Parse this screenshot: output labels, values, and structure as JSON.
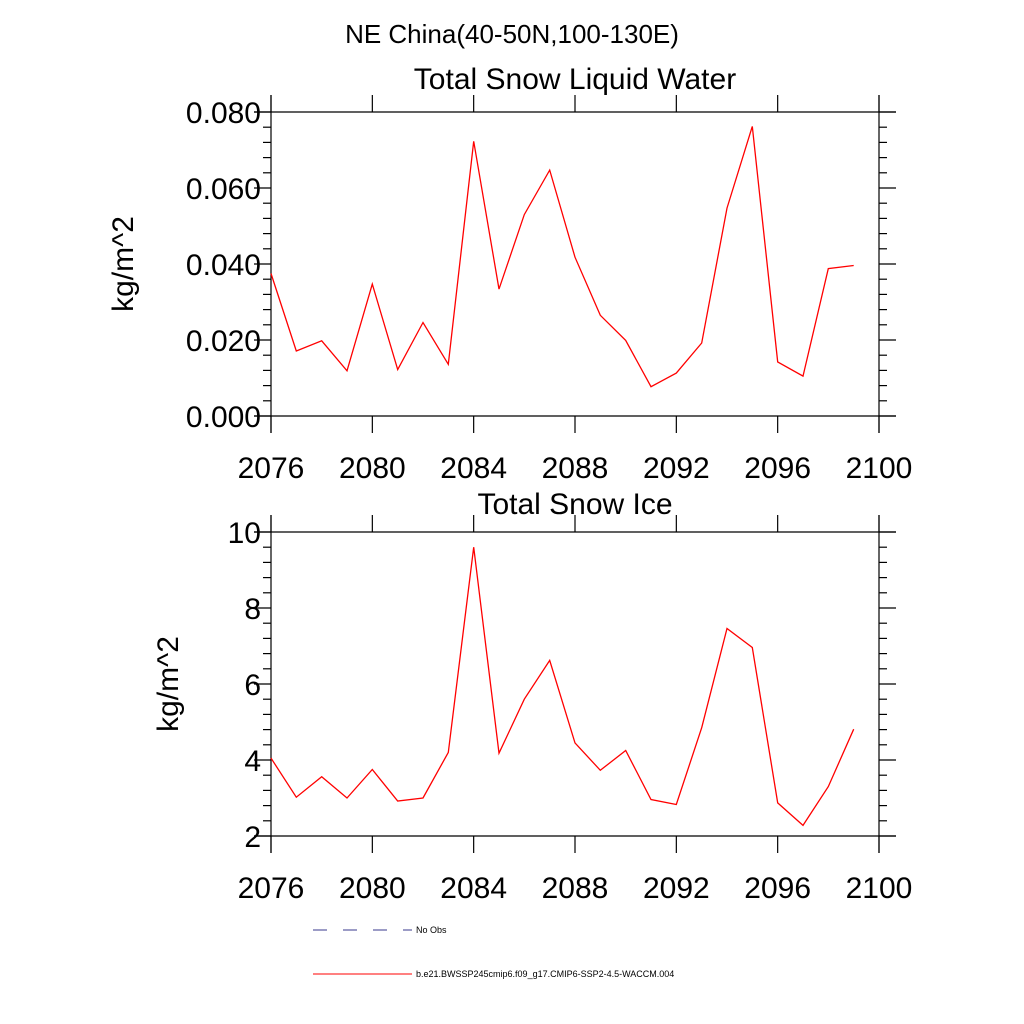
{
  "header": {
    "region_title": "NE China(40-50N,100-130E)"
  },
  "colors": {
    "series": "#ff0000",
    "no_obs": "#3a3a8c",
    "axis": "#000000"
  },
  "chart_data": [
    {
      "type": "line",
      "title": "Total Snow Liquid Water",
      "xlabel": "",
      "ylabel": "kg/m^2",
      "xlim": [
        2076,
        2100
      ],
      "ylim": [
        0,
        0.08
      ],
      "x_ticks": [
        2076,
        2080,
        2084,
        2088,
        2092,
        2096,
        2100
      ],
      "x_tick_labels": [
        "2076",
        "2080",
        "2084",
        "2088",
        "2092",
        "2096",
        "2100"
      ],
      "y_ticks": [
        0,
        0.02,
        0.04,
        0.06,
        0.08
      ],
      "y_tick_labels": [
        "0.000",
        "0.020",
        "0.040",
        "0.060",
        "0.080"
      ],
      "grid": false,
      "series": [
        {
          "name": "b.e21.BWSSP245cmip6.f09_g17.CMIP6-SSP2-4.5-WACCM.004",
          "x": [
            2076,
            2077,
            2078,
            2079,
            2080,
            2081,
            2082,
            2083,
            2084,
            2085,
            2086,
            2087,
            2088,
            2089,
            2090,
            2091,
            2092,
            2093,
            2094,
            2095,
            2096,
            2097,
            2098,
            2099
          ],
          "values": [
            0.0375,
            0.0171,
            0.0198,
            0.0119,
            0.0347,
            0.0122,
            0.0246,
            0.0136,
            0.0723,
            0.0334,
            0.053,
            0.0647,
            0.0418,
            0.0265,
            0.0199,
            0.0077,
            0.0113,
            0.0192,
            0.0547,
            0.0762,
            0.0142,
            0.0105,
            0.0388,
            0.0396
          ]
        }
      ]
    },
    {
      "type": "line",
      "title": "Total Snow Ice",
      "xlabel": "",
      "ylabel": "kg/m^2",
      "xlim": [
        2076,
        2100
      ],
      "ylim": [
        2,
        10
      ],
      "x_ticks": [
        2076,
        2080,
        2084,
        2088,
        2092,
        2096,
        2100
      ],
      "x_tick_labels": [
        "2076",
        "2080",
        "2084",
        "2088",
        "2092",
        "2096",
        "2100"
      ],
      "y_ticks": [
        2,
        4,
        6,
        8,
        10
      ],
      "y_tick_labels": [
        "2",
        "4",
        "6",
        "8",
        "10"
      ],
      "grid": false,
      "series": [
        {
          "name": "b.e21.BWSSP245cmip6.f09_g17.CMIP6-SSP2-4.5-WACCM.004",
          "x": [
            2076,
            2077,
            2078,
            2079,
            2080,
            2081,
            2082,
            2083,
            2084,
            2085,
            2086,
            2087,
            2088,
            2089,
            2090,
            2091,
            2092,
            2093,
            2094,
            2095,
            2096,
            2097,
            2098,
            2099
          ],
          "values": [
            4.05,
            3.02,
            3.56,
            3.0,
            3.75,
            2.92,
            3.0,
            4.2,
            9.6,
            4.18,
            5.6,
            6.62,
            4.45,
            3.73,
            4.25,
            2.96,
            2.83,
            4.85,
            7.46,
            6.96,
            2.87,
            2.28,
            3.3,
            4.81
          ]
        }
      ]
    }
  ],
  "legend": {
    "placement": "bottom",
    "items": [
      {
        "label": "No Obs",
        "style": "dashed"
      },
      {
        "label": "b.e21.BWSSP245cmip6.f09_g17.CMIP6-SSP2-4.5-WACCM.004",
        "style": "solid"
      }
    ]
  }
}
